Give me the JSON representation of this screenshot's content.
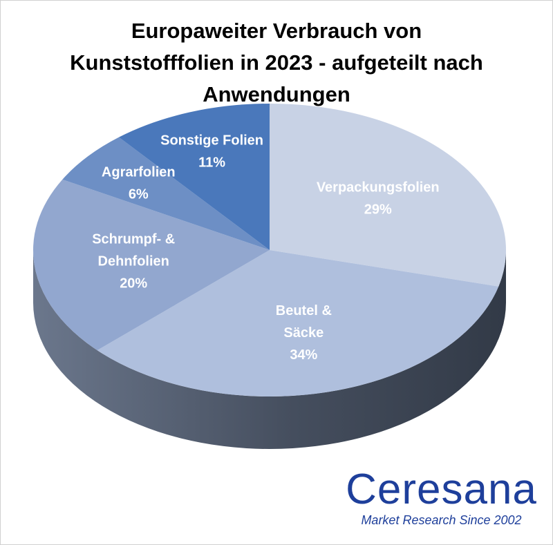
{
  "chart_data": {
    "type": "pie",
    "title_lines": [
      "Europaweiter Verbrauch von",
      "Kunststofffolien in 2023 - aufgeteilt nach",
      "Anwendungen"
    ],
    "slices": [
      {
        "label_lines": [
          "Verpackungsfolien"
        ],
        "value": 29,
        "value_label": "29%",
        "color": "#c8d2e5"
      },
      {
        "label_lines": [
          "Beutel &",
          "Säcke"
        ],
        "value": 34,
        "value_label": "34%",
        "color": "#afbfdd"
      },
      {
        "label_lines": [
          "Schrumpf- &",
          "Dehnfolien"
        ],
        "value": 20,
        "value_label": "20%",
        "color": "#92a7cf"
      },
      {
        "label_lines": [
          "Agrarfolien"
        ],
        "value": 6,
        "value_label": "6%",
        "color": "#6d8fc5"
      },
      {
        "label_lines": [
          "Sonstige Folien"
        ],
        "value": 11,
        "value_label": "11%",
        "color": "#4a78bb"
      }
    ],
    "start_angle_deg": -90,
    "direction": "clockwise",
    "side_color": "#4a5466"
  },
  "branding": {
    "logo_name": "Ceresana",
    "logo_tagline": "Market Research Since 2002"
  }
}
